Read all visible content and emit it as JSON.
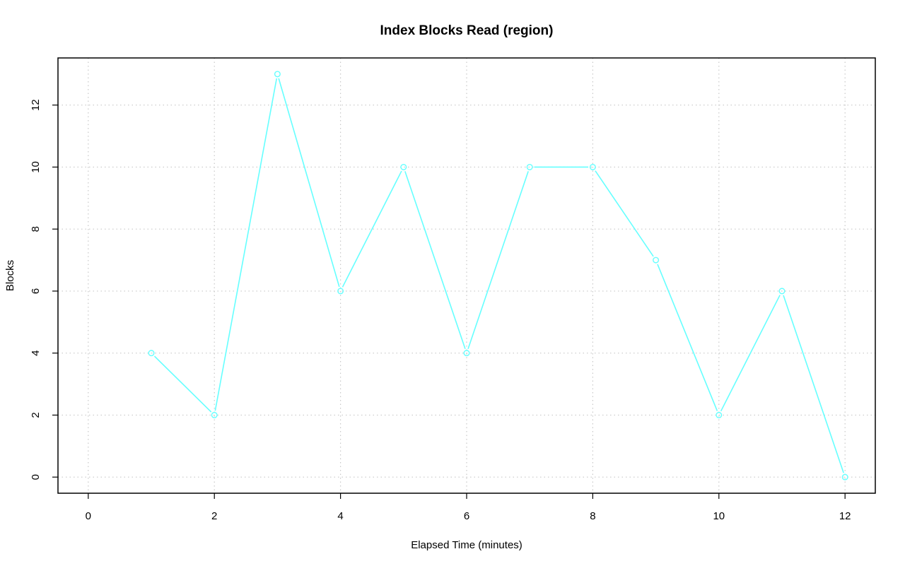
{
  "chart_data": {
    "type": "line",
    "title": "Index Blocks Read (region)",
    "xlabel": "Elapsed Time (minutes)",
    "ylabel": "Blocks",
    "x": [
      1,
      2,
      3,
      4,
      5,
      6,
      7,
      8,
      9,
      10,
      11,
      12
    ],
    "series": [
      {
        "values": [
          4,
          2,
          13,
          6,
          10,
          4,
          10,
          10,
          7,
          2,
          6,
          0
        ],
        "color": "#66ffff"
      }
    ],
    "xlim": [
      -0.48,
      12.48
    ],
    "ylim": [
      -0.52,
      13.52
    ],
    "x_ticks": [
      "0",
      "2",
      "4",
      "6",
      "8",
      "10",
      "12"
    ],
    "y_ticks": [
      "0",
      "2",
      "4",
      "6",
      "8",
      "10",
      "12"
    ],
    "grid": true,
    "marker": "open-circle"
  }
}
